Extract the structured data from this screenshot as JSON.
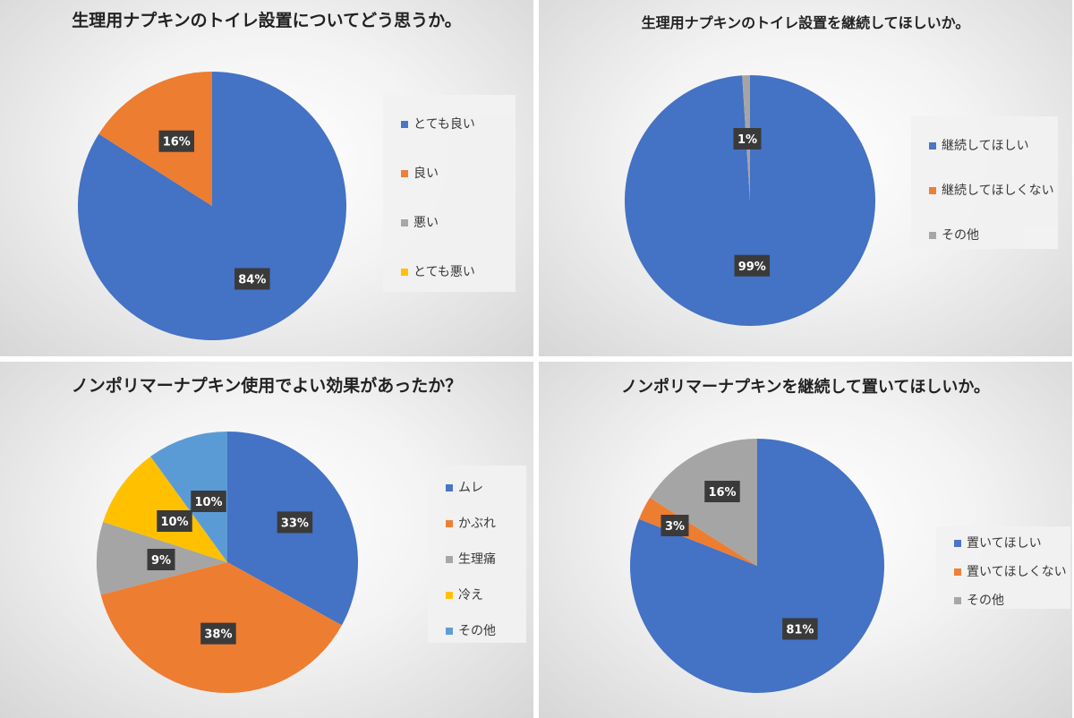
{
  "chart_data": [
    {
      "type": "pie",
      "title": "生理用ナプキンのトイレ設置についてどう思うか。",
      "categories": [
        "とても良い",
        "良い",
        "悪い",
        "とても悪い"
      ],
      "values": [
        84,
        16,
        0,
        0
      ],
      "labels": [
        "84%",
        "16%",
        "",
        ""
      ],
      "colors": [
        "#4472c4",
        "#ed7d31",
        "#a5a5a5",
        "#ffc000"
      ],
      "legend": "right"
    },
    {
      "type": "pie",
      "title": "生理用ナプキンのトイレ設置を継続してほしいか。",
      "categories": [
        "継続してほしい",
        "継続してほしくない",
        "その他"
      ],
      "values": [
        99,
        0,
        1
      ],
      "labels": [
        "99%",
        "",
        "1%"
      ],
      "colors": [
        "#4472c4",
        "#ed7d31",
        "#a5a5a5"
      ],
      "legend": "right"
    },
    {
      "type": "pie",
      "title": "ノンポリマーナプキン使用でよい効果があったか？",
      "categories": [
        "ムレ",
        "かぶれ",
        "生理痛",
        "冷え",
        "その他"
      ],
      "values": [
        33,
        38,
        9,
        10,
        10
      ],
      "labels": [
        "33%",
        "38%",
        "9%",
        "10%",
        "10%"
      ],
      "colors": [
        "#4472c4",
        "#ed7d31",
        "#a5a5a5",
        "#ffc000",
        "#5b9bd5"
      ],
      "legend": "right"
    },
    {
      "type": "pie",
      "title": "ノンポリマーナプキンを継続して置いてほしいか。",
      "categories": [
        "置いてほしい",
        "置いてほしくない",
        "その他"
      ],
      "values": [
        81,
        3,
        16
      ],
      "labels": [
        "81%",
        "3%",
        "16%"
      ],
      "colors": [
        "#4472c4",
        "#ed7d31",
        "#a5a5a5"
      ],
      "legend": "right"
    }
  ]
}
